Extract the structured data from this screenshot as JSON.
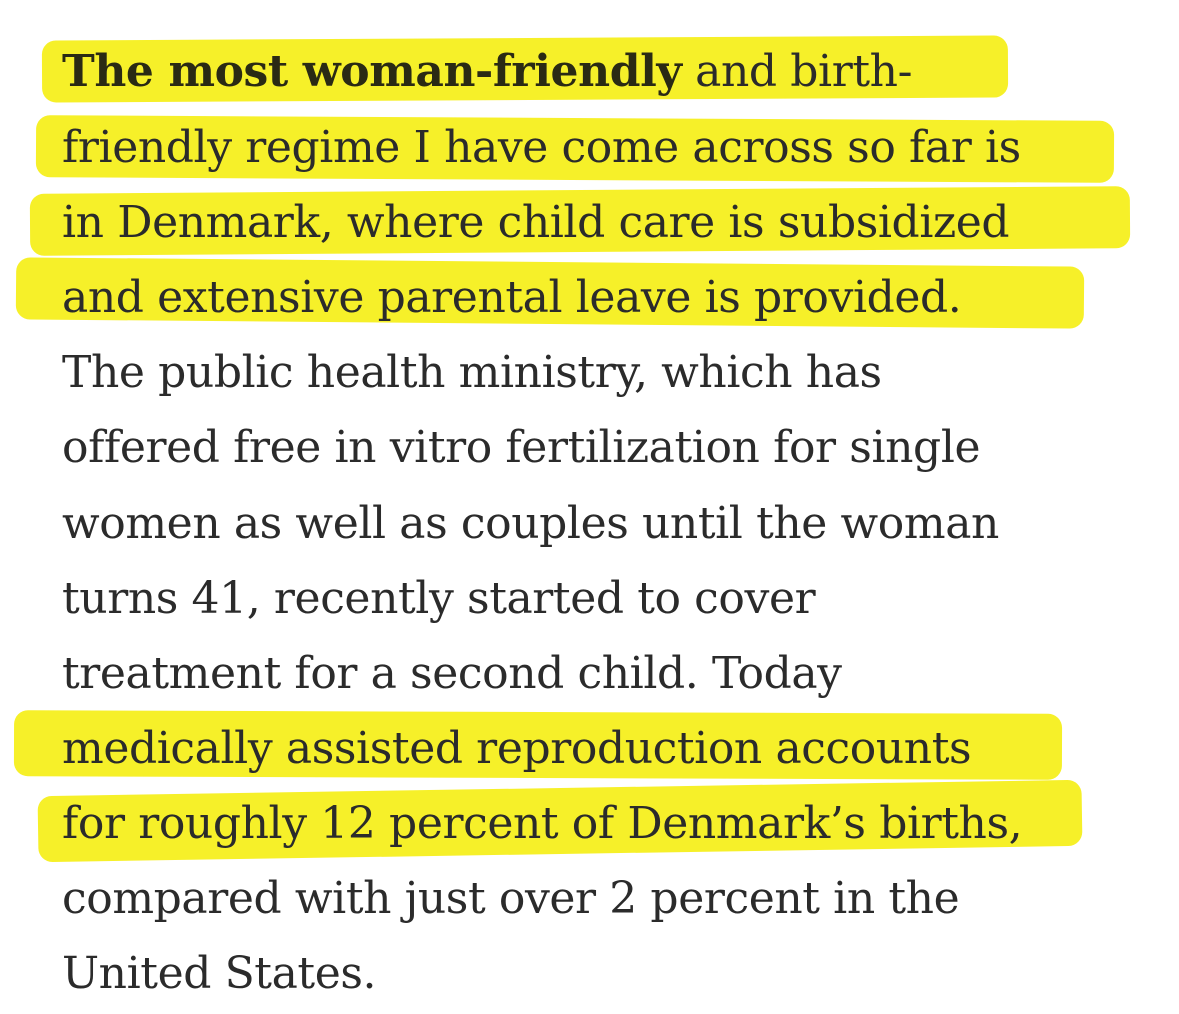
{
  "article": {
    "lines": [
      {
        "bold": "The most woman-friendly",
        "text": " and birth-"
      },
      {
        "text": "friendly regime I have come across so far is"
      },
      {
        "text": "in Denmark, where child care is subsidized"
      },
      {
        "text": "and extensive parental leave is provided."
      },
      {
        "text": "The public health ministry, which has"
      },
      {
        "text": "offered free in vitro fertilization for single"
      },
      {
        "text": "women as well as couples until the woman"
      },
      {
        "text": "turns 41, recently started to cover"
      },
      {
        "text": "treatment for a second child. Today"
      },
      {
        "text": "medically assisted reproduction accounts"
      },
      {
        "text": "for roughly 12 percent of Denmark’s births,"
      },
      {
        "text": "compared with just over 2 percent in the"
      },
      {
        "text": "United States."
      }
    ]
  },
  "highlight_color": "#f5ef1d"
}
